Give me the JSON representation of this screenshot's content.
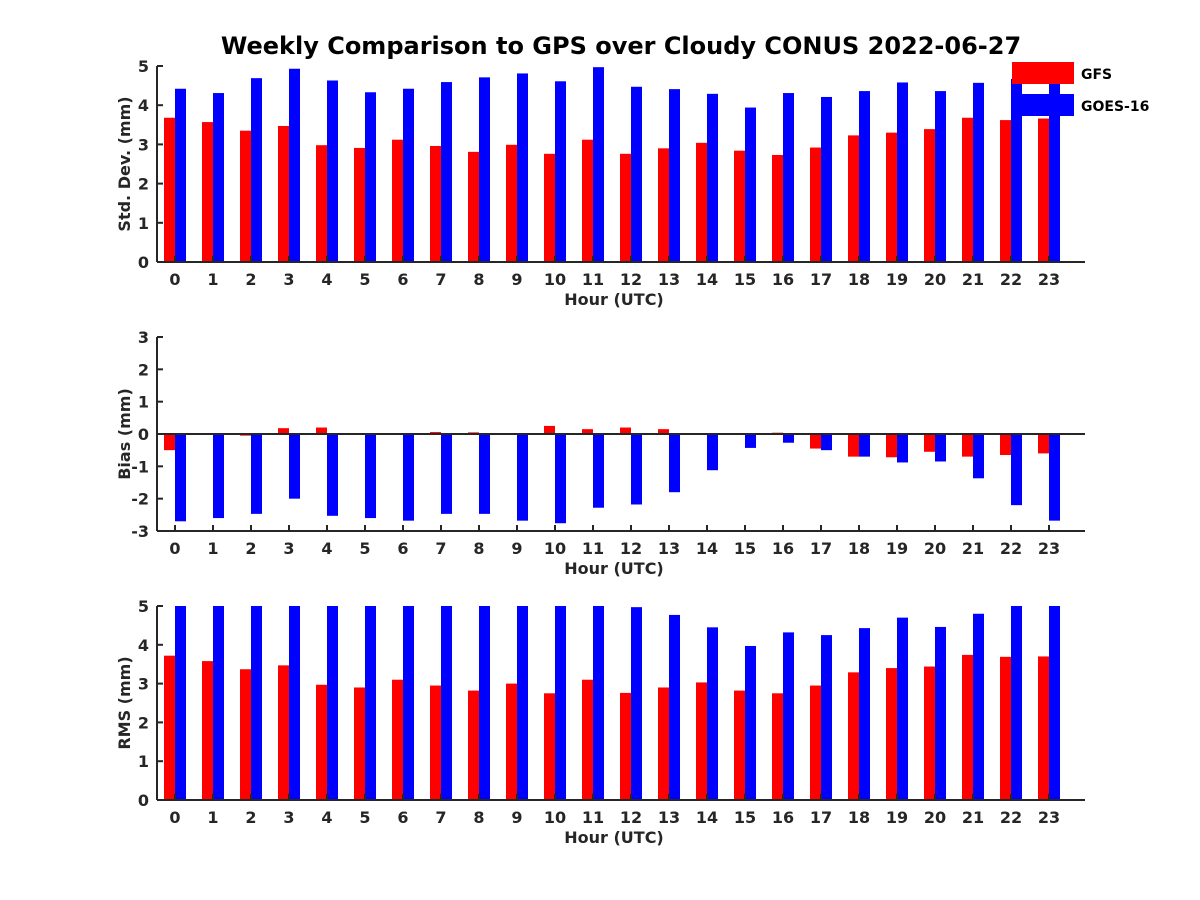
{
  "figure": {
    "title": "Weekly Comparison to GPS over Cloudy CONUS 2022-06-27"
  },
  "legend": {
    "placement": "top-right",
    "items": [
      {
        "name": "GFS",
        "color": "#ff0000"
      },
      {
        "name": "GOES-16",
        "color": "#0000ff"
      }
    ]
  },
  "chart_data": [
    {
      "type": "bar",
      "xlabel": "Hour (UTC)",
      "ylabel": "Std. Dev. (mm)",
      "ylim": [
        0,
        5
      ],
      "yticks": [
        0,
        1,
        2,
        3,
        4,
        5
      ],
      "categories": [
        "0",
        "1",
        "2",
        "3",
        "4",
        "5",
        "6",
        "7",
        "8",
        "9",
        "10",
        "11",
        "12",
        "13",
        "14",
        "15",
        "16",
        "17",
        "18",
        "19",
        "20",
        "21",
        "22",
        "23"
      ],
      "series": [
        {
          "name": "GFS",
          "color": "#ff0000",
          "values": [
            3.68,
            3.57,
            3.35,
            3.47,
            2.98,
            2.91,
            3.12,
            2.96,
            2.81,
            2.99,
            2.76,
            3.12,
            2.76,
            2.9,
            3.04,
            2.84,
            2.73,
            2.92,
            3.23,
            3.3,
            3.39,
            3.68,
            3.62,
            3.66
          ]
        },
        {
          "name": "GOES-16",
          "color": "#0000ff",
          "values": [
            4.42,
            4.31,
            4.69,
            4.93,
            4.63,
            4.33,
            4.42,
            4.59,
            4.71,
            4.81,
            4.61,
            4.97,
            4.47,
            4.41,
            4.29,
            3.94,
            4.31,
            4.21,
            4.36,
            4.58,
            4.36,
            4.57,
            4.67,
            4.76
          ]
        }
      ]
    },
    {
      "type": "bar",
      "xlabel": "Hour (UTC)",
      "ylabel": "Bias (mm)",
      "ylim": [
        -3,
        3
      ],
      "yticks": [
        -3,
        -2,
        -1,
        0,
        1,
        2,
        3
      ],
      "categories": [
        "0",
        "1",
        "2",
        "3",
        "4",
        "5",
        "6",
        "7",
        "8",
        "9",
        "10",
        "11",
        "12",
        "13",
        "14",
        "15",
        "16",
        "17",
        "18",
        "19",
        "20",
        "21",
        "22",
        "23"
      ],
      "series": [
        {
          "name": "GFS",
          "color": "#ff0000",
          "values": [
            -0.5,
            -0.03,
            -0.05,
            0.18,
            0.2,
            -0.03,
            -0.02,
            0.06,
            0.05,
            -0.02,
            0.25,
            0.15,
            0.2,
            0.15,
            0.03,
            -0.02,
            0.04,
            -0.45,
            -0.7,
            -0.72,
            -0.55,
            -0.7,
            -0.65,
            -0.6
          ]
        },
        {
          "name": "GOES-16",
          "color": "#0000ff",
          "values": [
            -2.7,
            -2.6,
            -2.47,
            -2.0,
            -2.53,
            -2.6,
            -2.68,
            -2.47,
            -2.47,
            -2.68,
            -2.76,
            -2.28,
            -2.18,
            -1.8,
            -1.12,
            -0.43,
            -0.27,
            -0.5,
            -0.7,
            -0.88,
            -0.85,
            -1.37,
            -2.2,
            -2.68
          ]
        }
      ]
    },
    {
      "type": "bar",
      "xlabel": "Hour (UTC)",
      "ylabel": "RMS (mm)",
      "ylim": [
        0,
        5
      ],
      "yticks": [
        0,
        1,
        2,
        3,
        4,
        5
      ],
      "categories": [
        "0",
        "1",
        "2",
        "3",
        "4",
        "5",
        "6",
        "7",
        "8",
        "9",
        "10",
        "11",
        "12",
        "13",
        "14",
        "15",
        "16",
        "17",
        "18",
        "19",
        "20",
        "21",
        "22",
        "23"
      ],
      "series": [
        {
          "name": "GFS",
          "color": "#ff0000",
          "values": [
            3.72,
            3.58,
            3.37,
            3.47,
            2.97,
            2.9,
            3.1,
            2.95,
            2.82,
            3.0,
            2.75,
            3.1,
            2.76,
            2.9,
            3.03,
            2.82,
            2.75,
            2.95,
            3.29,
            3.4,
            3.44,
            3.74,
            3.69,
            3.7
          ]
        },
        {
          "name": "GOES-16",
          "color": "#0000ff",
          "values": [
            5.0,
            5.0,
            5.0,
            5.0,
            5.0,
            5.0,
            5.0,
            5.0,
            5.0,
            5.0,
            5.0,
            5.0,
            4.97,
            4.77,
            4.45,
            3.97,
            4.32,
            4.25,
            4.43,
            4.7,
            4.46,
            4.8,
            5.0,
            5.0
          ]
        }
      ]
    }
  ]
}
